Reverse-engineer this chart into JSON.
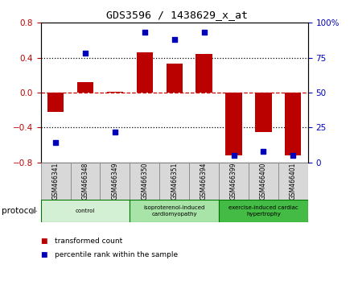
{
  "title": "GDS3596 / 1438629_x_at",
  "samples": [
    "GSM466341",
    "GSM466348",
    "GSM466349",
    "GSM466350",
    "GSM466351",
    "GSM466394",
    "GSM466399",
    "GSM466400",
    "GSM466401"
  ],
  "bar_values": [
    -0.22,
    0.12,
    0.01,
    0.46,
    0.33,
    0.44,
    -0.72,
    -0.45,
    -0.72
  ],
  "percentile_values": [
    14,
    78,
    22,
    93,
    88,
    93,
    5,
    8,
    5
  ],
  "bar_color": "#bb0000",
  "dot_color": "#0000bb",
  "ylim_left": [
    -0.8,
    0.8
  ],
  "ylim_right": [
    0,
    100
  ],
  "yticks_left": [
    -0.8,
    -0.4,
    0.0,
    0.4,
    0.8
  ],
  "yticks_right": [
    0,
    25,
    50,
    75,
    100
  ],
  "ytick_labels_right": [
    "0",
    "25",
    "50",
    "75",
    "100%"
  ],
  "groups": [
    {
      "label": "control",
      "start": 0,
      "end": 3,
      "color": "#d4f0d4"
    },
    {
      "label": "isoproterenol-induced\ncardiomyopathy",
      "start": 3,
      "end": 6,
      "color": "#a8e4a8"
    },
    {
      "label": "exercise-induced cardiac\nhypertrophy",
      "start": 6,
      "end": 9,
      "color": "#44bb44"
    }
  ],
  "protocol_label": "protocol",
  "legend_bar_label": "transformed count",
  "legend_dot_label": "percentile rank within the sample",
  "hline_color": "#cc0000",
  "dotted_color": "#000000",
  "bg_color": "#ffffff",
  "plot_bg": "#ffffff",
  "bar_width": 0.55,
  "cell_color": "#d8d8d8",
  "cell_edge": "#888888"
}
